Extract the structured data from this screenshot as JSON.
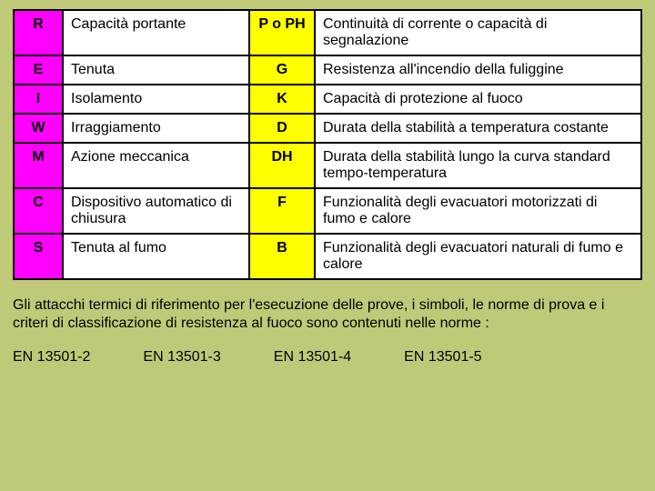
{
  "table": {
    "rows": [
      {
        "code1": "R",
        "desc1": "Capacità portante",
        "code2": "P o PH",
        "desc2": "Continuità di corrente o capacità di segnalazione"
      },
      {
        "code1": "E",
        "desc1": "Tenuta",
        "code2": "G",
        "desc2": "Resistenza all'incendio della fuliggine"
      },
      {
        "code1": "I",
        "desc1": "Isolamento",
        "code2": "K",
        "desc2": "Capacità di protezione al fuoco"
      },
      {
        "code1": "W",
        "desc1": "Irraggiamento",
        "code2": "D",
        "desc2": "Durata della stabilità a temperatura costante"
      },
      {
        "code1": "M",
        "desc1": "Azione meccanica",
        "code2": "DH",
        "desc2": "Durata della stabilità lungo la curva standard tempo-temperatura"
      },
      {
        "code1": "C",
        "desc1": "Dispositivo automatico di chiusura",
        "code2": "F",
        "desc2": "Funzionalità degli evacuatori motorizzati di fumo e calore"
      },
      {
        "code1": "S",
        "desc1": "Tenuta al fumo",
        "code2": "B",
        "desc2": "Funzionalità degli evacuatori naturali di fumo e calore"
      }
    ]
  },
  "paragraph": "Gli attacchi termici di riferimento per l'esecuzione delle prove, i simboli, le norme di prova e i criteri di classificazione di resistenza al fuoco sono contenuti nelle norme :",
  "norms": [
    "EN 13501-2",
    "EN 13501-3",
    "EN 13501-4",
    "EN 13501-5"
  ],
  "colors": {
    "page_bg": "#c0c978",
    "code_left_bg": "#ff00ff",
    "code_right_bg": "#ffff00",
    "table_bg": "#ffffff",
    "border": "#000000"
  }
}
